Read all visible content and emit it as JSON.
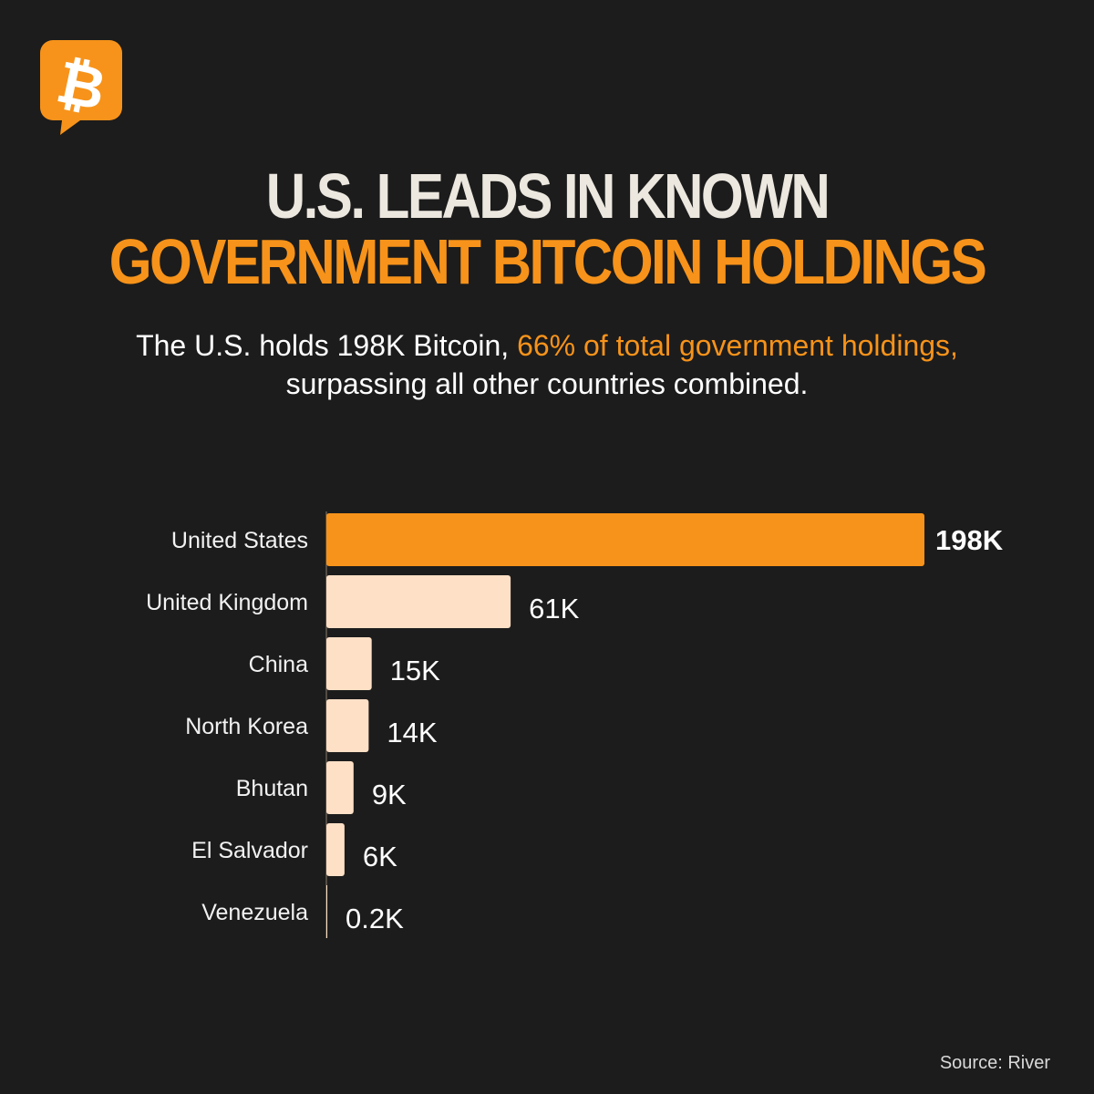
{
  "header": {
    "title_line1": "U.S. LEADS IN KNOWN",
    "title_line2": "GOVERNMENT BITCOIN HOLDINGS"
  },
  "subtitle": {
    "part1": "The U.S. holds 198K Bitcoin, ",
    "highlight": "66% of total government holdings,",
    "part2": " surpassing all other countries combined."
  },
  "chart_data": {
    "type": "bar",
    "orientation": "horizontal",
    "title": "U.S. LEADS IN KNOWN GOVERNMENT BITCOIN HOLDINGS",
    "categories": [
      "United States",
      "United Kingdom",
      "China",
      "North Korea",
      "Bhutan",
      "El Salvador",
      "Venezuela"
    ],
    "values": [
      198,
      61,
      15,
      14,
      9,
      6,
      0.2
    ],
    "value_labels": [
      "198K",
      "61K",
      "15K",
      "14K",
      "9K",
      "6K",
      "0.2K"
    ],
    "unit": "K BTC",
    "xlim": [
      0,
      198
    ],
    "highlight_category": "United States",
    "colors": {
      "highlight": "#f7931a",
      "default": "#fde0c6"
    }
  },
  "source": "Source: River",
  "colors": {
    "background": "#1c1c1c",
    "accent": "#f7931a",
    "title_light": "#ece7df"
  },
  "logo_icon": "bitcoin-icon"
}
